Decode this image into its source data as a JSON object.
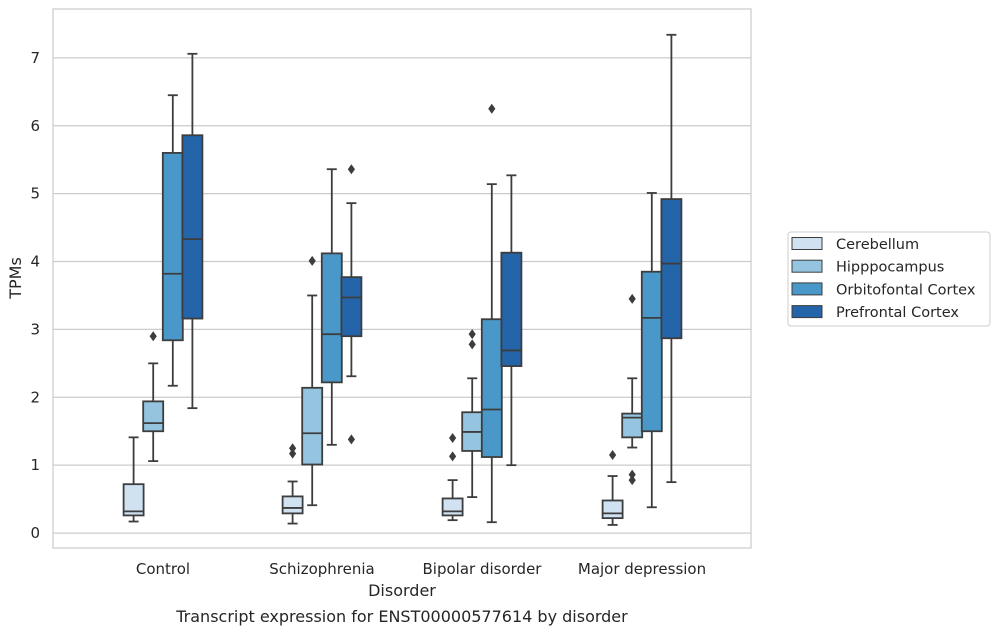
{
  "caption": "Transcript expression for ENST00000577614 by disorder",
  "chart_data": {
    "type": "boxplot",
    "title": "",
    "xlabel": "Disorder",
    "ylabel": "TPMs",
    "ylim": [
      -0.22,
      7.72
    ],
    "yticks": [
      0,
      1,
      2,
      3,
      4,
      5,
      6,
      7
    ],
    "grid": "horizontal",
    "legend_position": "right",
    "categories": [
      "Control",
      "Schizophrenia",
      "Bipolar disorder",
      "Major depression"
    ],
    "series": [
      {
        "name": "Cerebellum",
        "color": "#d0e1f2",
        "boxes": [
          {
            "whisker_low": 0.17,
            "q1": 0.26,
            "median": 0.32,
            "q3": 0.72,
            "whisker_high": 1.41,
            "outliers": []
          },
          {
            "whisker_low": 0.14,
            "q1": 0.29,
            "median": 0.37,
            "q3": 0.54,
            "whisker_high": 0.76,
            "outliers": [
              1.17,
              1.25
            ]
          },
          {
            "whisker_low": 0.19,
            "q1": 0.26,
            "median": 0.32,
            "q3": 0.51,
            "whisker_high": 0.78,
            "outliers": [
              1.13,
              1.4
            ]
          },
          {
            "whisker_low": 0.12,
            "q1": 0.22,
            "median": 0.29,
            "q3": 0.48,
            "whisker_high": 0.84,
            "outliers": [
              1.15
            ]
          }
        ]
      },
      {
        "name": "Hipppocampus",
        "color": "#94c4df",
        "boxes": [
          {
            "whisker_low": 1.06,
            "q1": 1.5,
            "median": 1.62,
            "q3": 1.94,
            "whisker_high": 2.5,
            "outliers": [
              2.9
            ]
          },
          {
            "whisker_low": 0.41,
            "q1": 1.01,
            "median": 1.47,
            "q3": 2.14,
            "whisker_high": 3.5,
            "outliers": [
              4.01
            ]
          },
          {
            "whisker_low": 0.53,
            "q1": 1.21,
            "median": 1.49,
            "q3": 1.78,
            "whisker_high": 2.28,
            "outliers": [
              2.78,
              2.93
            ]
          },
          {
            "whisker_low": 1.26,
            "q1": 1.41,
            "median": 1.7,
            "q3": 1.76,
            "whisker_high": 2.28,
            "outliers": [
              0.78,
              0.86,
              3.45
            ]
          }
        ]
      },
      {
        "name": "Orbitofontal Cortex",
        "color": "#4a98c9",
        "boxes": [
          {
            "whisker_low": 2.17,
            "q1": 2.84,
            "median": 3.82,
            "q3": 5.6,
            "whisker_high": 6.45,
            "outliers": []
          },
          {
            "whisker_low": 1.3,
            "q1": 2.22,
            "median": 2.93,
            "q3": 4.12,
            "whisker_high": 5.36,
            "outliers": []
          },
          {
            "whisker_low": 0.16,
            "q1": 1.12,
            "median": 1.82,
            "q3": 3.15,
            "whisker_high": 5.14,
            "outliers": [
              6.25
            ]
          },
          {
            "whisker_low": 0.38,
            "q1": 1.5,
            "median": 3.17,
            "q3": 3.85,
            "whisker_high": 5.01,
            "outliers": []
          }
        ]
      },
      {
        "name": "Prefrontal Cortex",
        "color": "#2465a9",
        "boxes": [
          {
            "whisker_low": 1.84,
            "q1": 3.16,
            "median": 4.33,
            "q3": 5.86,
            "whisker_high": 7.06,
            "outliers": []
          },
          {
            "whisker_low": 2.31,
            "q1": 2.9,
            "median": 3.47,
            "q3": 3.77,
            "whisker_high": 4.86,
            "outliers": [
              1.38,
              5.36
            ]
          },
          {
            "whisker_low": 1.0,
            "q1": 2.46,
            "median": 2.69,
            "q3": 4.13,
            "whisker_high": 5.27,
            "outliers": []
          },
          {
            "whisker_low": 0.75,
            "q1": 2.87,
            "median": 3.97,
            "q3": 4.92,
            "whisker_high": 7.34,
            "outliers": []
          }
        ]
      }
    ]
  }
}
